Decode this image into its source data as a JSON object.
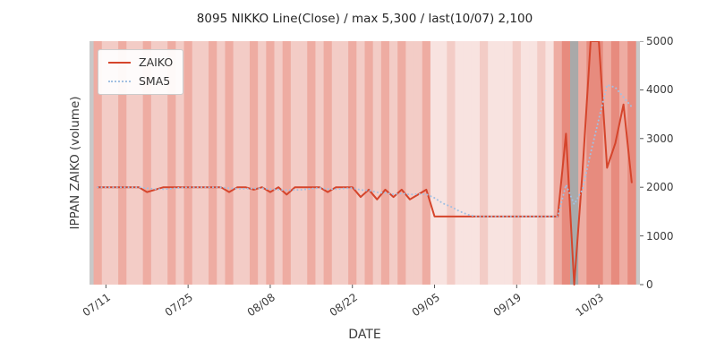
{
  "title": "8095 NIKKO Line(Close) / max 5,300 / last(10/07) 2,100",
  "axes": {
    "xlabel": "DATE",
    "ylabel": "IPPAN ZAIKO (volume)"
  },
  "legend": {
    "position": "upper left",
    "items": [
      {
        "label": "ZAIKO",
        "style": "solid"
      },
      {
        "label": "SMA5",
        "style": "dotted"
      }
    ]
  },
  "colors": {
    "zaiko_line": "#d5452c",
    "sma5_line": "#a2c0e2",
    "plot_edge_bg": "#c8c8c8",
    "tick_color": "#555555",
    "band_palette": {
      "0": "#f8e3e0",
      "1": "#f3ccc6",
      "2": "#eeaca2",
      "3": "#e78b7e",
      "g": "#a9a9a9"
    }
  },
  "chart_data": {
    "type": "line",
    "title": "8095 NIKKO Line(Close) / max 5,300 / last(10/07) 2,100",
    "xlabel": "DATE",
    "ylabel": "IPPAN ZAIKO (volume)",
    "ylim": [
      0,
      5000
    ],
    "xlim_index_pad": [
      -1,
      66
    ],
    "grid": false,
    "y_ticks": [
      0,
      1000,
      2000,
      3000,
      4000,
      5000
    ],
    "x_ticks": [
      "07/11",
      "07/25",
      "08/08",
      "08/22",
      "09/05",
      "09/19",
      "10/03"
    ],
    "x": [
      "07/08",
      "07/11",
      "07/12",
      "07/13",
      "07/14",
      "07/15",
      "07/18",
      "07/19",
      "07/20",
      "07/21",
      "07/22",
      "07/25",
      "07/26",
      "07/27",
      "07/28",
      "07/29",
      "08/01",
      "08/02",
      "08/03",
      "08/04",
      "08/05",
      "08/08",
      "08/09",
      "08/10",
      "08/11",
      "08/12",
      "08/15",
      "08/16",
      "08/17",
      "08/18",
      "08/19",
      "08/22",
      "08/23",
      "08/24",
      "08/25",
      "08/26",
      "08/29",
      "08/30",
      "08/31",
      "09/01",
      "09/02",
      "09/05",
      "09/06",
      "09/07",
      "09/08",
      "09/09",
      "09/12",
      "09/13",
      "09/14",
      "09/15",
      "09/16",
      "09/19",
      "09/20",
      "09/21",
      "09/22",
      "09/23",
      "09/26",
      "09/27",
      "09/28",
      "09/29",
      "09/30",
      "10/03",
      "10/04",
      "10/05",
      "10/06",
      "10/07"
    ],
    "series": [
      {
        "name": "ZAIKO",
        "values": [
          2000,
          2000,
          2000,
          2000,
          2000,
          2000,
          1900,
          1950,
          2000,
          2000,
          2000,
          2000,
          2000,
          2000,
          2000,
          2000,
          1900,
          2000,
          2000,
          1950,
          2000,
          1900,
          2000,
          1850,
          2000,
          2000,
          2000,
          2000,
          1900,
          2000,
          2000,
          2000,
          1800,
          1950,
          1750,
          1950,
          1800,
          1950,
          1750,
          1850,
          1950,
          1400,
          1400,
          1400,
          1400,
          1400,
          1400,
          1400,
          1400,
          1400,
          1400,
          1400,
          1400,
          1400,
          1400,
          1400,
          1400,
          3100,
          0,
          2300,
          5300,
          5000,
          2400,
          2900,
          3700,
          2100
        ]
      },
      {
        "name": "SMA5",
        "values": [
          2000,
          2000,
          2000,
          2000,
          2000,
          2000,
          1980,
          1960,
          1960,
          1970,
          1990,
          2000,
          2000,
          2000,
          2000,
          2000,
          1980,
          1970,
          1970,
          1975,
          1980,
          1960,
          1950,
          1940,
          1945,
          1950,
          1970,
          1985,
          1965,
          1960,
          1975,
          1985,
          1945,
          1935,
          1895,
          1885,
          1855,
          1875,
          1850,
          1860,
          1855,
          1780,
          1670,
          1600,
          1510,
          1440,
          1400,
          1400,
          1400,
          1400,
          1400,
          1400,
          1400,
          1400,
          1400,
          1400,
          1400,
          2050,
          1650,
          1950,
          2700,
          3400,
          4100,
          4050,
          3850,
          3650
        ]
      }
    ],
    "max_label": "max 5,300",
    "last_label": "last(10/07) 2,100",
    "background_bands": {
      "levels": [
        2,
        1,
        1,
        2,
        1,
        1,
        2,
        1,
        1,
        2,
        1,
        2,
        1,
        1,
        2,
        1,
        2,
        1,
        1,
        2,
        1,
        2,
        1,
        2,
        1,
        1,
        2,
        1,
        2,
        1,
        1,
        2,
        1,
        2,
        1,
        2,
        1,
        2,
        1,
        1,
        2,
        0,
        0,
        1,
        0,
        0,
        0,
        1,
        0,
        0,
        0,
        1,
        0,
        0,
        1,
        0,
        2,
        3,
        "g",
        2,
        3,
        3,
        2,
        3,
        2,
        3
      ]
    }
  }
}
